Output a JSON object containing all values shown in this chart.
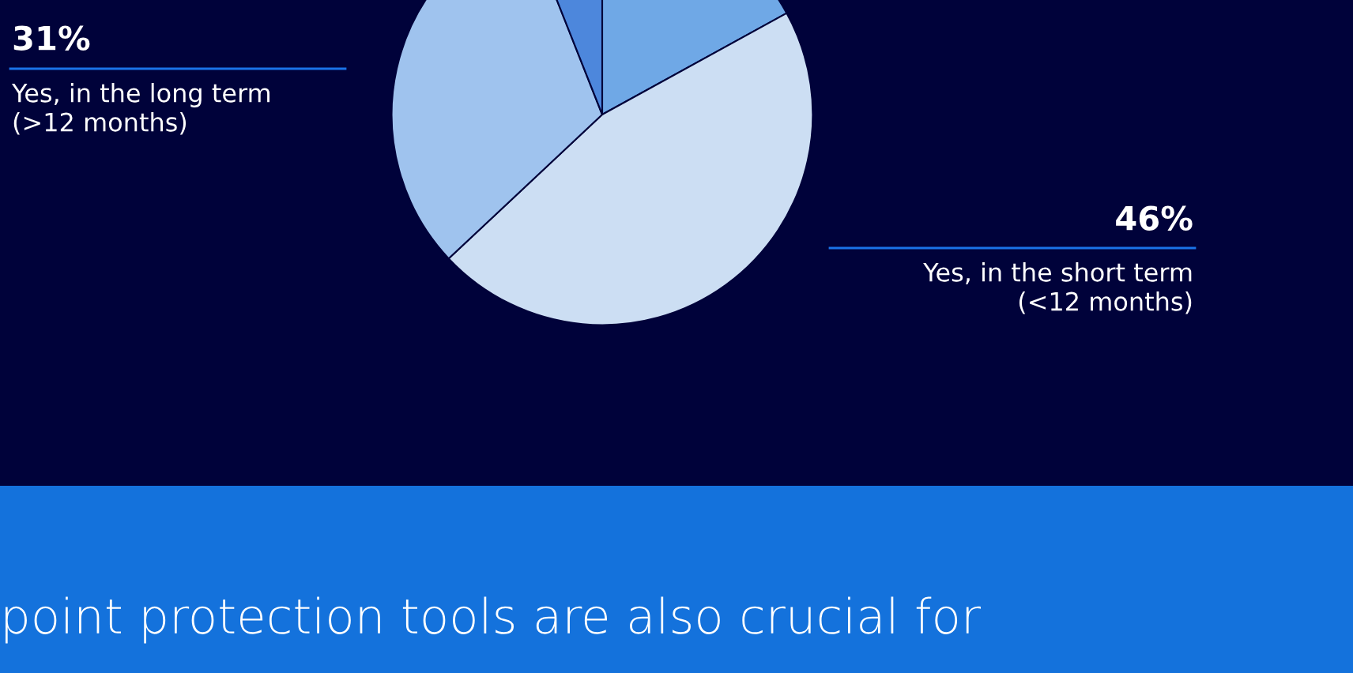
{
  "chart_data": {
    "type": "pie",
    "categories": [
      null,
      "Yes, in the short term\n(<12 months)",
      "Yes, in the long term\n(>12 months)",
      null
    ],
    "values": [
      17,
      46,
      31,
      6
    ],
    "colors": [
      "#6fa8e6",
      "#ccdef3",
      "#9fc3ee",
      "#4d87dc"
    ],
    "value_labels": [
      null,
      "46%",
      "31%",
      null
    ],
    "annotations": [
      "point protection tools are also crucial for"
    ]
  }
}
